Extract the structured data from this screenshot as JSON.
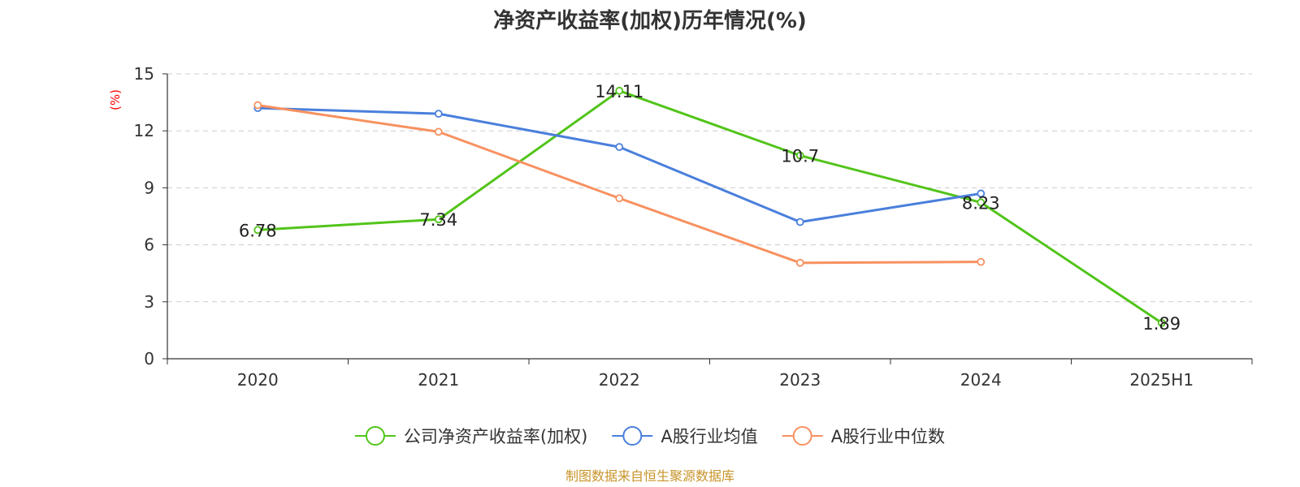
{
  "colors": {
    "title": "#333333",
    "axis": "#333333",
    "grid": "#cccccc",
    "ylabel": "#ff0000",
    "source": "#c8942a"
  },
  "source_text": "制图数据来自恒生聚源数据库",
  "chart_data": {
    "type": "line",
    "title": "净资产收益率(加权)历年情况(%)",
    "ylabel": "(%)",
    "xlabel": "",
    "categories": [
      "2020",
      "2021",
      "2022",
      "2023",
      "2024",
      "2025H1"
    ],
    "ylim": [
      0,
      15
    ],
    "yticks": [
      0,
      3,
      6,
      9,
      12,
      15
    ],
    "grid": true,
    "legend_position": "bottom",
    "series": [
      {
        "name": "公司净资产收益率(加权)",
        "color": "#52c41a",
        "values": [
          6.78,
          7.34,
          14.11,
          10.7,
          8.23,
          1.89
        ],
        "labels": [
          "6.78",
          "7.34",
          "14.11",
          "10.7",
          "8.23",
          "1.89"
        ]
      },
      {
        "name": "A股行业均值",
        "color": "#4a7fdc",
        "values": [
          13.2,
          12.9,
          11.15,
          7.2,
          8.7,
          null
        ]
      },
      {
        "name": "A股行业中位数",
        "color": "#f79160",
        "values": [
          13.35,
          11.95,
          8.45,
          5.05,
          5.1,
          null
        ]
      }
    ]
  }
}
